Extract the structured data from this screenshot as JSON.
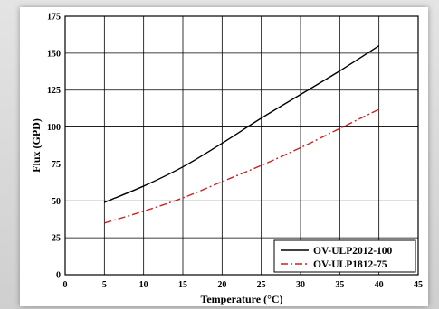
{
  "chart_data": {
    "type": "line",
    "xlabel": "Temperature (°C)",
    "ylabel": "Flux (GPD)",
    "xlim": [
      0,
      45
    ],
    "ylim": [
      0,
      175
    ],
    "xticks": [
      0,
      5,
      10,
      15,
      20,
      25,
      30,
      35,
      40,
      45
    ],
    "yticks": [
      0,
      25,
      50,
      75,
      100,
      125,
      150,
      175
    ],
    "grid": true,
    "legend_position": "bottom-right",
    "x": [
      5,
      10,
      15,
      20,
      25,
      30,
      35,
      40
    ],
    "series": [
      {
        "name": "OV-ULP2012-100",
        "color": "#000000",
        "style": "solid",
        "values": [
          49,
          60,
          73,
          89,
          106,
          122,
          138,
          155
        ]
      },
      {
        "name": "OV-ULP1812-75",
        "color": "#cc2222",
        "style": "dash-dot",
        "values": [
          35,
          43,
          52,
          63,
          74,
          86,
          99,
          112
        ]
      }
    ]
  }
}
